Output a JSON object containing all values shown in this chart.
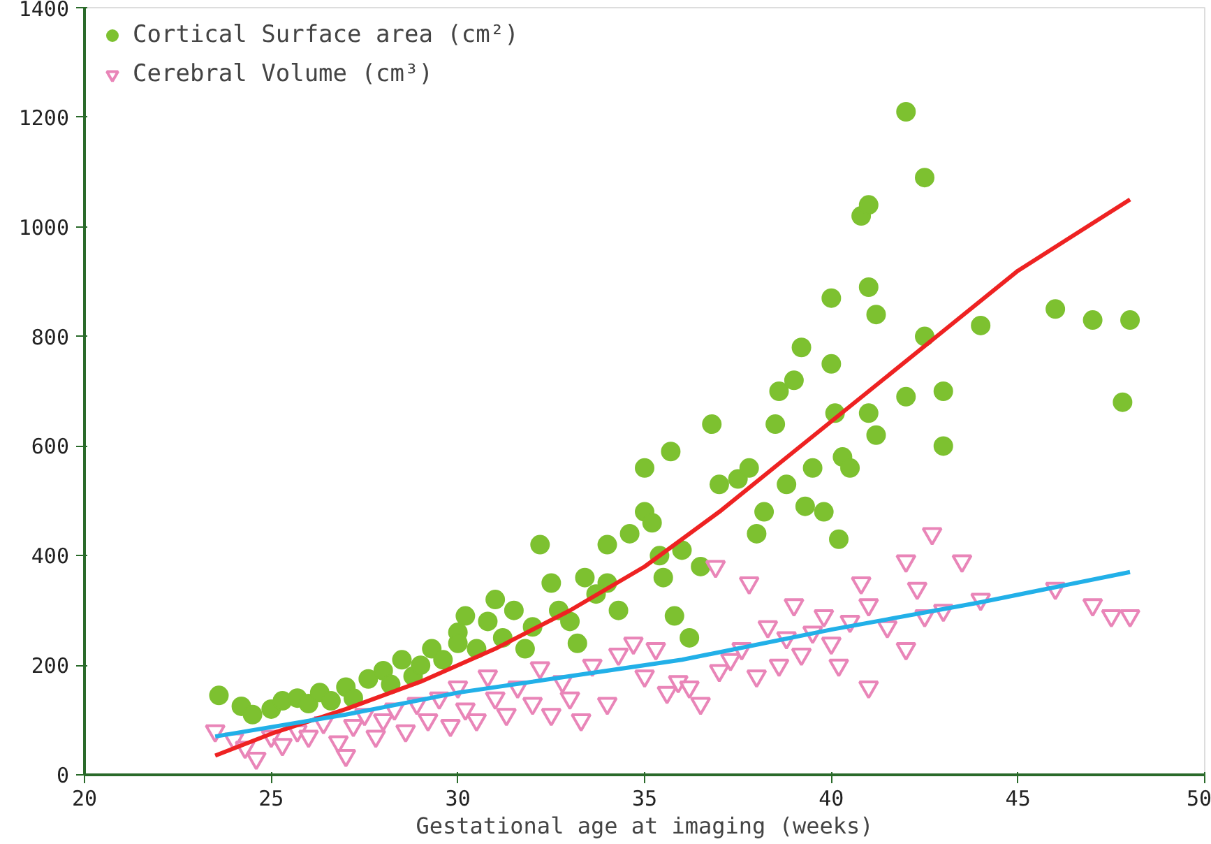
{
  "chart_data": {
    "type": "scatter",
    "xlabel": "Gestational age at imaging (weeks)",
    "xlim": [
      20,
      50
    ],
    "ylim": [
      0,
      1400
    ],
    "xticks": [
      20,
      25,
      30,
      35,
      40,
      45,
      50
    ],
    "yticks": [
      0,
      200,
      400,
      600,
      800,
      1000,
      1200,
      1400
    ],
    "grid": false,
    "legend": "top left",
    "series": [
      {
        "name": "Cortical Surface area (cm²)",
        "color": "#7dc130",
        "marker": "circle",
        "x": [
          23.6,
          24.2,
          24.5,
          25,
          25.3,
          25.7,
          26,
          26.3,
          26.6,
          27,
          27.2,
          27.6,
          28,
          28.2,
          28.5,
          28.8,
          29,
          29.3,
          29.6,
          30,
          30,
          30.2,
          30.5,
          30.8,
          31,
          31.2,
          31.5,
          31.8,
          32,
          32.2,
          32.5,
          32.7,
          33,
          33.2,
          33.4,
          33.7,
          34,
          34,
          34.3,
          34.6,
          35,
          35,
          35.2,
          35.4,
          35.5,
          35.7,
          35.8,
          36,
          36.2,
          36.5,
          36.8,
          37,
          37.5,
          37.8,
          38,
          38.2,
          38.5,
          38.6,
          38.8,
          39,
          39.2,
          39.3,
          39.5,
          39.8,
          40,
          40,
          40.1,
          40.2,
          40.3,
          40.5,
          40.8,
          41,
          41,
          41,
          41.2,
          41.2,
          42,
          42,
          42.5,
          42.5,
          43,
          43,
          44,
          46,
          47,
          47.8,
          48
        ],
        "values": [
          145,
          125,
          110,
          120,
          135,
          140,
          130,
          150,
          135,
          160,
          140,
          175,
          190,
          165,
          210,
          180,
          200,
          230,
          210,
          260,
          240,
          290,
          230,
          280,
          320,
          250,
          300,
          230,
          270,
          420,
          350,
          300,
          280,
          240,
          360,
          330,
          350,
          420,
          300,
          440,
          560,
          480,
          460,
          400,
          360,
          590,
          290,
          410,
          250,
          380,
          640,
          530,
          540,
          560,
          440,
          480,
          640,
          700,
          530,
          720,
          780,
          490,
          560,
          480,
          870,
          750,
          660,
          430,
          580,
          560,
          1020,
          1040,
          890,
          660,
          620,
          840,
          1210,
          690,
          1090,
          800,
          700,
          600,
          820,
          850,
          830,
          680,
          830
        ]
      },
      {
        "name": "Cerebral Volume (cm³)",
        "color": "#e985b8",
        "marker": "triangle",
        "x": [
          23.5,
          24,
          24.3,
          24.6,
          25,
          25.3,
          25.7,
          26,
          26.4,
          26.8,
          27,
          27.2,
          27.5,
          27.8,
          28,
          28.3,
          28.6,
          28.9,
          29.2,
          29.5,
          29.8,
          30,
          30.2,
          30.5,
          30.8,
          31,
          31.3,
          31.6,
          32,
          32.2,
          32.5,
          32.8,
          33,
          33.3,
          33.6,
          34,
          34.3,
          34.7,
          35,
          35.3,
          35.6,
          35.9,
          36.2,
          36.5,
          36.9,
          37,
          37.3,
          37.6,
          37.8,
          38,
          38.3,
          38.6,
          38.8,
          39,
          39.2,
          39.5,
          39.8,
          40,
          40.2,
          40.5,
          40.8,
          41,
          41,
          41.5,
          42,
          42,
          42.3,
          42.5,
          42.7,
          43,
          43.5,
          44,
          46,
          47,
          47.5,
          48
        ],
        "values": [
          80,
          65,
          50,
          30,
          70,
          55,
          80,
          70,
          95,
          60,
          35,
          90,
          110,
          70,
          100,
          120,
          80,
          130,
          100,
          140,
          90,
          160,
          120,
          100,
          180,
          140,
          110,
          160,
          130,
          195,
          110,
          170,
          140,
          100,
          200,
          130,
          220,
          240,
          180,
          230,
          150,
          170,
          160,
          130,
          380,
          190,
          210,
          230,
          350,
          180,
          270,
          200,
          250,
          310,
          220,
          260,
          290,
          240,
          200,
          280,
          350,
          310,
          160,
          270,
          390,
          230,
          340,
          290,
          440,
          300,
          390,
          320,
          340,
          310,
          290,
          290
        ]
      },
      {
        "type": "line",
        "color": "#ee2222",
        "x": [
          23.5,
          25,
          27,
          29,
          31,
          33,
          35,
          37,
          39,
          41,
          43,
          45,
          48
        ],
        "values": [
          35,
          75,
          120,
          170,
          230,
          300,
          380,
          480,
          590,
          700,
          810,
          920,
          1050
        ]
      },
      {
        "type": "line",
        "color": "#22b0e8",
        "x": [
          23.5,
          27,
          30,
          33,
          36,
          40,
          44,
          48
        ],
        "values": [
          70,
          110,
          150,
          180,
          210,
          265,
          315,
          370
        ]
      }
    ]
  }
}
